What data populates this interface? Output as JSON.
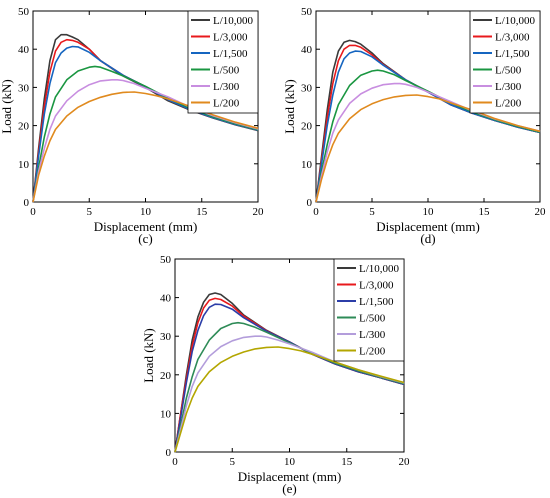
{
  "chart_data": [
    {
      "type": "line",
      "panel_label": "(c)",
      "xlabel": "Displacement (mm)",
      "ylabel": "Load (kN)",
      "xlim": [
        0,
        20
      ],
      "ylim": [
        0,
        50
      ],
      "xticks": [
        0,
        5,
        10,
        15,
        20
      ],
      "yticks": [
        0,
        10,
        20,
        30,
        40,
        50
      ],
      "grid": false,
      "legend_position": "top-right",
      "series": [
        {
          "name": "L/10,000",
          "color": "#3a3a3a",
          "x": [
            0,
            0.5,
            1.0,
            1.5,
            2.0,
            2.5,
            3.0,
            3.5,
            4.0,
            5.0,
            6.0,
            8.0,
            10.0,
            12.0,
            14.0,
            16.0,
            18.0,
            20.0
          ],
          "y": [
            0,
            14,
            27,
            37,
            42.5,
            43.8,
            43.8,
            43.2,
            42.5,
            40.0,
            37.0,
            33.0,
            30.0,
            26.5,
            24.0,
            22.0,
            20.2,
            18.7
          ]
        },
        {
          "name": "L/3,000",
          "color": "#e8191c",
          "x": [
            0,
            0.5,
            1.0,
            1.5,
            2.0,
            2.5,
            3.0,
            3.5,
            4.0,
            5.0,
            6.0,
            8.0,
            10.0,
            12.0,
            14.0,
            16.0,
            18.0,
            20.0
          ],
          "y": [
            0,
            13,
            25,
            34,
            39.5,
            41.8,
            42.5,
            42.3,
            41.8,
            40.0,
            37.0,
            33.2,
            30.2,
            26.8,
            24.2,
            22.1,
            20.3,
            18.8
          ]
        },
        {
          "name": "L/1,500",
          "color": "#1565c0",
          "x": [
            0,
            0.5,
            1.0,
            1.5,
            2.0,
            2.5,
            3.0,
            3.5,
            4.0,
            5.0,
            6.0,
            8.0,
            10.0,
            12.0,
            14.0,
            16.0,
            18.0,
            20.0
          ],
          "y": [
            0,
            12,
            23,
            31,
            36.5,
            39.0,
            40.3,
            40.7,
            40.6,
            39.2,
            37.0,
            33.2,
            30.2,
            26.8,
            24.2,
            22.1,
            20.3,
            18.8
          ]
        },
        {
          "name": "L/500",
          "color": "#1a9641",
          "x": [
            0,
            0.5,
            1.0,
            1.5,
            2.0,
            3.0,
            4.0,
            5.0,
            5.5,
            6.0,
            7.0,
            8.0,
            10.0,
            12.0,
            14.0,
            16.0,
            18.0,
            20.0
          ],
          "y": [
            0,
            9,
            17,
            23,
            27.5,
            32.0,
            34.3,
            35.3,
            35.5,
            35.3,
            34.2,
            33.0,
            30.3,
            27.2,
            24.5,
            22.3,
            20.5,
            18.9
          ]
        },
        {
          "name": "L/300",
          "color": "#c88ee0",
          "x": [
            0,
            0.5,
            1.0,
            1.5,
            2.0,
            3.0,
            4.0,
            5.0,
            6.0,
            7.0,
            7.5,
            8.0,
            9.0,
            10.0,
            12.0,
            14.0,
            16.0,
            18.0,
            20.0
          ],
          "y": [
            0,
            8,
            14,
            19,
            22.5,
            26.5,
            29.0,
            30.7,
            31.7,
            32.0,
            32.0,
            31.8,
            31.0,
            29.8,
            27.5,
            24.8,
            22.6,
            20.7,
            19.1
          ]
        },
        {
          "name": "L/200",
          "color": "#e08a1e",
          "x": [
            0,
            0.5,
            1.0,
            1.5,
            2.0,
            3.0,
            4.0,
            5.0,
            6.0,
            7.0,
            8.0,
            9.0,
            10.0,
            11.0,
            12.0,
            14.0,
            16.0,
            18.0,
            20.0
          ],
          "y": [
            0,
            7,
            12,
            16,
            19.0,
            22.5,
            24.8,
            26.3,
            27.4,
            28.2,
            28.7,
            28.8,
            28.4,
            27.8,
            27.0,
            25.0,
            22.8,
            20.9,
            19.3
          ]
        }
      ]
    },
    {
      "type": "line",
      "panel_label": "(d)",
      "xlabel": "Displacement (mm)",
      "ylabel": "Load (kN)",
      "xlim": [
        0,
        20
      ],
      "ylim": [
        0,
        50
      ],
      "xticks": [
        0,
        5,
        10,
        15,
        20
      ],
      "yticks": [
        0,
        10,
        20,
        30,
        40,
        50
      ],
      "grid": false,
      "legend_position": "top-right",
      "series": [
        {
          "name": "L/10,000",
          "color": "#3a3a3a",
          "x": [
            0,
            0.5,
            1.0,
            1.5,
            2.0,
            2.5,
            3.0,
            3.5,
            4.0,
            5.0,
            6.0,
            8.0,
            10.0,
            12.0,
            14.0,
            16.0,
            18.0,
            20.0
          ],
          "y": [
            0,
            12,
            24,
            34,
            39.5,
            41.8,
            42.3,
            42.0,
            41.3,
            39.0,
            36.2,
            32.0,
            28.8,
            25.5,
            23.2,
            21.3,
            19.6,
            18.2
          ]
        },
        {
          "name": "L/3,000",
          "color": "#e8191c",
          "x": [
            0,
            0.5,
            1.0,
            1.5,
            2.0,
            2.5,
            3.0,
            3.5,
            4.0,
            5.0,
            6.0,
            8.0,
            10.0,
            12.0,
            14.0,
            16.0,
            18.0,
            20.0
          ],
          "y": [
            0,
            11,
            22,
            31,
            37.0,
            40.0,
            41.0,
            41.0,
            40.5,
            38.5,
            36.0,
            32.0,
            28.8,
            25.5,
            23.2,
            21.3,
            19.6,
            18.2
          ]
        },
        {
          "name": "L/1,500",
          "color": "#1565c0",
          "x": [
            0,
            0.5,
            1.0,
            1.5,
            2.0,
            2.5,
            3.0,
            3.5,
            4.0,
            5.0,
            6.0,
            8.0,
            10.0,
            12.0,
            14.0,
            16.0,
            18.0,
            20.0
          ],
          "y": [
            0,
            10,
            20,
            28,
            34.0,
            37.5,
            39.0,
            39.5,
            39.4,
            38.0,
            35.8,
            32.0,
            28.8,
            25.5,
            23.2,
            21.3,
            19.6,
            18.2
          ]
        },
        {
          "name": "L/500",
          "color": "#1a9641",
          "x": [
            0,
            0.5,
            1.0,
            1.5,
            2.0,
            3.0,
            4.0,
            5.0,
            5.5,
            6.0,
            7.0,
            8.0,
            10.0,
            12.0,
            14.0,
            16.0,
            18.0,
            20.0
          ],
          "y": [
            0,
            8,
            15,
            21,
            25.5,
            30.5,
            33.2,
            34.3,
            34.5,
            34.3,
            33.3,
            31.8,
            29.0,
            26.0,
            23.5,
            21.5,
            19.8,
            18.3
          ]
        },
        {
          "name": "L/300",
          "color": "#c88ee0",
          "x": [
            0,
            0.5,
            1.0,
            1.5,
            2.0,
            3.0,
            4.0,
            5.0,
            6.0,
            7.0,
            7.5,
            8.0,
            9.0,
            10.0,
            12.0,
            14.0,
            16.0,
            18.0,
            20.0
          ],
          "y": [
            0,
            7,
            13,
            18,
            21.5,
            25.8,
            28.3,
            29.8,
            30.7,
            31.0,
            31.0,
            30.8,
            30.0,
            28.8,
            26.3,
            23.8,
            21.7,
            20.0,
            18.5
          ]
        },
        {
          "name": "L/200",
          "color": "#e08a1e",
          "x": [
            0,
            0.5,
            1.0,
            1.5,
            2.0,
            3.0,
            4.0,
            5.0,
            6.0,
            7.0,
            8.0,
            9.0,
            10.0,
            11.0,
            12.0,
            14.0,
            16.0,
            18.0,
            20.0
          ],
          "y": [
            0,
            6,
            11,
            15,
            18.0,
            21.8,
            24.2,
            25.7,
            26.8,
            27.5,
            27.9,
            28.0,
            27.6,
            27.0,
            26.0,
            24.0,
            21.8,
            20.0,
            18.5
          ]
        }
      ]
    },
    {
      "type": "line",
      "panel_label": "(e)",
      "xlabel": "Displacement (mm)",
      "ylabel": "Load (kN)",
      "xlim": [
        0,
        20
      ],
      "ylim": [
        0,
        50
      ],
      "xticks": [
        0,
        5,
        10,
        15,
        20
      ],
      "yticks": [
        0,
        10,
        20,
        30,
        40,
        50
      ],
      "grid": false,
      "legend_position": "top-right",
      "series": [
        {
          "name": "L/10,000",
          "color": "#3a3a3a",
          "x": [
            0,
            0.5,
            1.0,
            1.5,
            2.0,
            2.5,
            3.0,
            3.5,
            4.0,
            5.0,
            6.0,
            8.0,
            10.0,
            12.0,
            14.0,
            16.0,
            18.0,
            20.0
          ],
          "y": [
            0,
            10,
            20,
            29,
            35.0,
            38.8,
            40.8,
            41.2,
            40.8,
            38.5,
            35.5,
            31.5,
            28.5,
            25.3,
            22.8,
            20.8,
            19.2,
            17.5
          ]
        },
        {
          "name": "L/3,000",
          "color": "#e8191c",
          "x": [
            0,
            0.5,
            1.0,
            1.5,
            2.0,
            2.5,
            3.0,
            3.5,
            4.0,
            5.0,
            6.0,
            8.0,
            10.0,
            12.0,
            14.0,
            16.0,
            18.0,
            20.0
          ],
          "y": [
            0,
            10,
            19,
            27.5,
            33.5,
            37.3,
            39.3,
            39.8,
            39.5,
            37.8,
            35.2,
            31.4,
            28.5,
            25.3,
            22.8,
            20.8,
            19.2,
            17.5
          ]
        },
        {
          "name": "L/1,500",
          "color": "#2c3ea8",
          "x": [
            0,
            0.5,
            1.0,
            1.5,
            2.0,
            2.5,
            3.0,
            3.5,
            4.0,
            5.0,
            6.0,
            8.0,
            10.0,
            12.0,
            14.0,
            16.0,
            18.0,
            20.0
          ],
          "y": [
            0,
            9,
            18,
            26,
            31.5,
            35.3,
            37.5,
            38.3,
            38.2,
            37.0,
            34.8,
            31.3,
            28.5,
            25.3,
            22.8,
            20.8,
            19.2,
            17.5
          ]
        },
        {
          "name": "L/500",
          "color": "#2e8b57",
          "x": [
            0,
            0.5,
            1.0,
            1.5,
            2.0,
            3.0,
            4.0,
            5.0,
            5.5,
            6.0,
            7.0,
            8.0,
            10.0,
            12.0,
            14.0,
            16.0,
            18.0,
            20.0
          ],
          "y": [
            0,
            7,
            14,
            19.5,
            24.0,
            29.0,
            32.0,
            33.3,
            33.5,
            33.3,
            32.3,
            31.0,
            28.3,
            25.5,
            23.0,
            21.0,
            19.3,
            17.7
          ]
        },
        {
          "name": "L/300",
          "color": "#b39ddb",
          "x": [
            0,
            0.5,
            1.0,
            1.5,
            2.0,
            3.0,
            4.0,
            5.0,
            6.0,
            7.0,
            7.5,
            8.0,
            9.0,
            10.0,
            12.0,
            14.0,
            16.0,
            18.0,
            20.0
          ],
          "y": [
            0,
            6,
            12,
            17,
            20.5,
            24.8,
            27.3,
            28.8,
            29.7,
            30.0,
            30.0,
            29.8,
            29.0,
            28.0,
            25.8,
            23.3,
            21.3,
            19.5,
            17.9
          ]
        },
        {
          "name": "L/200",
          "color": "#b3a600",
          "x": [
            0,
            0.5,
            1.0,
            1.5,
            2.0,
            3.0,
            4.0,
            5.0,
            6.0,
            7.0,
            8.0,
            9.0,
            10.0,
            11.0,
            12.0,
            14.0,
            16.0,
            18.0,
            20.0
          ],
          "y": [
            0,
            5,
            10,
            14,
            17.0,
            20.8,
            23.2,
            24.8,
            25.9,
            26.7,
            27.1,
            27.2,
            26.8,
            26.2,
            25.3,
            23.3,
            21.3,
            19.6,
            18.0
          ]
        }
      ]
    }
  ]
}
